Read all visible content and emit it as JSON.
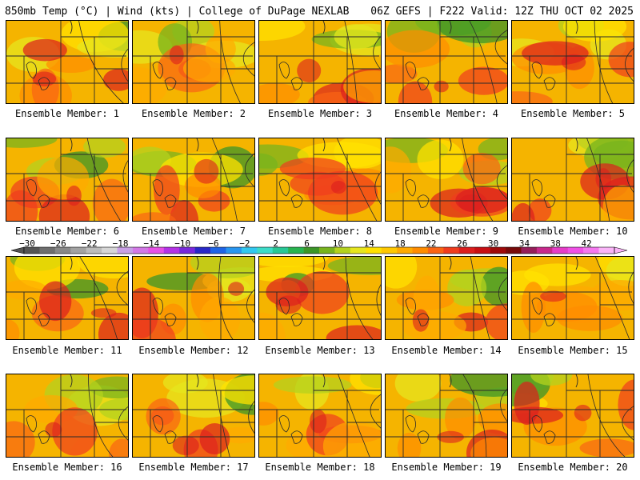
{
  "header": {
    "left": "850mb Temp (°C) | Wind (kts) | College of DuPage NEXLAB",
    "right": "06Z GEFS | F222 Valid: 12Z THU OCT 02 2025"
  },
  "panels": [
    {
      "label": "Ensemble Member: 1"
    },
    {
      "label": "Ensemble Member: 2"
    },
    {
      "label": "Ensemble Member: 3"
    },
    {
      "label": "Ensemble Member: 4"
    },
    {
      "label": "Ensemble Member: 5"
    },
    {
      "label": "Ensemble Member: 6"
    },
    {
      "label": "Ensemble Member: 7"
    },
    {
      "label": "Ensemble Member: 8"
    },
    {
      "label": "Ensemble Member: 9"
    },
    {
      "label": "Ensemble Member: 10"
    },
    {
      "label": "Ensemble Member: 11"
    },
    {
      "label": "Ensemble Member: 12"
    },
    {
      "label": "Ensemble Member: 13"
    },
    {
      "label": "Ensemble Member: 14"
    },
    {
      "label": "Ensemble Member: 15"
    },
    {
      "label": "Ensemble Member: 16"
    },
    {
      "label": "Ensemble Member: 17"
    },
    {
      "label": "Ensemble Member: 18"
    },
    {
      "label": "Ensemble Member: 19"
    },
    {
      "label": "Ensemble Member: 20"
    }
  ],
  "colorbar": {
    "labels": [
      "−30",
      "−26",
      "−22",
      "−18",
      "−14",
      "−10",
      "−6",
      "−2",
      "2",
      "6",
      "10",
      "14",
      "18",
      "22",
      "26",
      "30",
      "34",
      "38",
      "42"
    ],
    "colors": [
      "#545454",
      "#6e6e6e",
      "#888888",
      "#a2a2a2",
      "#bcbcbc",
      "#d6d6d6",
      "#c8a0e6",
      "#d278e6",
      "#e650e6",
      "#b432e6",
      "#7828dc",
      "#2828c8",
      "#1e64e6",
      "#2896f0",
      "#32c8f0",
      "#3cdcc8",
      "#28c896",
      "#28b450",
      "#3c9628",
      "#78b41e",
      "#b4d21e",
      "#e6e61e",
      "#ffe100",
      "#ffc800",
      "#ffaa00",
      "#ff8c00",
      "#fa6414",
      "#f03c1e",
      "#dc1e1e",
      "#c80f14",
      "#a00a0a",
      "#780a0a",
      "#961e5a",
      "#c8288c",
      "#e63cc8",
      "#f050e6",
      "#f578f0",
      "#fab4f8"
    ]
  }
}
